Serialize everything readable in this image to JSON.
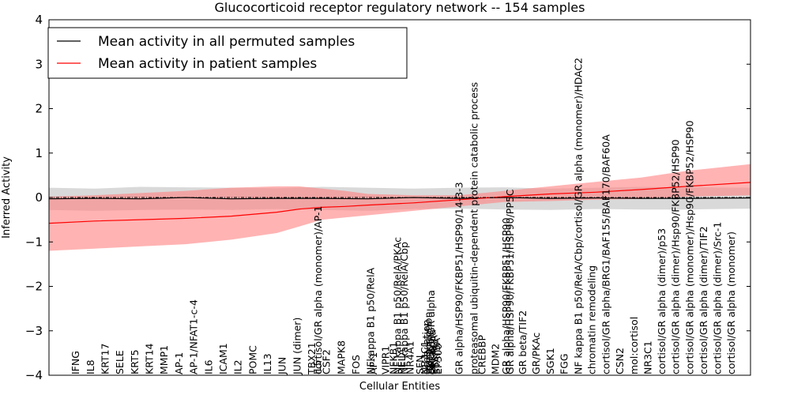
{
  "chart_data": {
    "type": "line",
    "title": "Glucocorticoid receptor regulatory network -- 154 samples",
    "xlabel": "Cellular Entities",
    "ylabel": "Inferred Activity",
    "ylim": [
      -4,
      4
    ],
    "yticks": [
      -4,
      -3,
      -2,
      -1,
      0,
      1,
      2,
      3,
      4
    ],
    "xlim": [
      0,
      154
    ],
    "legend_position": "top-left",
    "colors": {
      "permuted": "#000000",
      "patient": "#ff0000",
      "permuted_band": "#bfbfbf",
      "patient_band": "#ff8080"
    },
    "series": [
      {
        "name": "Mean activity in all permuted samples",
        "x": [
          0,
          10,
          20,
          30,
          40,
          50,
          60,
          70,
          80,
          90,
          100,
          110,
          120,
          130,
          140,
          154
        ],
        "values": [
          -0.03,
          -0.02,
          -0.03,
          0.0,
          -0.03,
          -0.02,
          -0.02,
          -0.03,
          0.0,
          -0.02,
          0.0,
          -0.02,
          -0.01,
          -0.02,
          -0.02,
          -0.01
        ],
        "lower": [
          -0.28,
          -0.3,
          -0.28,
          -0.27,
          -0.28,
          -0.26,
          -0.28,
          -0.3,
          -0.26,
          -0.25,
          -0.27,
          -0.28,
          -0.26,
          -0.27,
          -0.27,
          -0.25
        ],
        "upper": [
          0.22,
          0.2,
          0.24,
          0.23,
          0.22,
          0.21,
          0.24,
          0.22,
          0.2,
          0.22,
          0.23,
          0.2,
          0.22,
          0.24,
          0.23,
          0.22
        ]
      },
      {
        "name": "Mean activity in patient samples",
        "x": [
          0,
          10,
          20,
          30,
          40,
          50,
          55,
          60,
          65,
          70,
          80,
          90,
          100,
          110,
          120,
          130,
          140,
          154
        ],
        "values": [
          -0.58,
          -0.53,
          -0.5,
          -0.47,
          -0.42,
          -0.33,
          -0.26,
          -0.22,
          -0.2,
          -0.17,
          -0.12,
          -0.05,
          0.02,
          0.08,
          0.12,
          0.18,
          0.25,
          0.34
        ],
        "lower": [
          -1.2,
          -1.15,
          -1.1,
          -1.05,
          -0.95,
          -0.8,
          -0.65,
          -0.5,
          -0.45,
          -0.4,
          -0.3,
          -0.2,
          -0.1,
          -0.08,
          -0.05,
          -0.03,
          0.02,
          0.05
        ],
        "upper": [
          0.02,
          0.05,
          0.1,
          0.15,
          0.22,
          0.25,
          0.25,
          0.2,
          0.15,
          0.08,
          0.05,
          0.05,
          0.15,
          0.25,
          0.35,
          0.45,
          0.6,
          0.75
        ]
      }
    ],
    "entity_labels": [
      "IFNG",
      "IL8",
      "KRT17",
      "SELE",
      "KRT5",
      "KRT14",
      "MMP1",
      "AP-1",
      "AP-1/NFAT1-c-4",
      "IL6",
      "ICAM1",
      "IL2",
      "POMC",
      "IL13",
      "JUN",
      "JUN (dimer)",
      "TBX21",
      "IL5",
      "cortisol/GR alpha (monomer)/AP-1",
      "CSF2",
      "MAPK8",
      "FOS",
      "NFkappa B1 p50/RelA",
      "AP-1",
      "VIPR1",
      "NFKB1",
      "NF kappa B1 p50/RelA/PKAc",
      "RELA",
      "NF kappa B1 p50/RelA/Cbp",
      "NR4A1",
      "SFN",
      "NR3C1",
      "acetylation",
      "transcription",
      "AKT1",
      "cortisol/GR alpha",
      "GR alpha",
      "PRKACA",
      "STAT5A",
      "EP300",
      "GR alpha/HSP90/FKBP51/HSP90/14-3-3",
      "proteasomal ubiquitin-dependent protein catabolic process",
      "CREBBP",
      "MDM2",
      "GR alpha/HSP90/FKBP51/HSP90",
      "GR alpha/HSP90/FKBP51/HSP90/PP5C",
      "GR beta/TIF2",
      "GR/PKAc",
      "SGK1",
      "FGG",
      "NF kappa B1 p50/RelA/Cbp/cortisol/GR alpha (monomer)/HDAC2",
      "chromatin remodeling",
      "cortisol/GR alpha/BRG1/BAF155/BAF170/BAF60A",
      "CSN2",
      "mol:cortisol",
      "NR3C1",
      "cortisol/GR alpha (dimer)/p53",
      "cortisol/GR alpha (dimer)/Hsp90/FKBP52/HSP90",
      "cortisol/GR alpha (monomer)/Hsp90/FKBP52/HSP90",
      "cortisol/GR alpha (dimer)/TIF2",
      "cortisol/GR alpha (dimer)/Src-1",
      "cortisol/GR alpha (monomer)"
    ],
    "entity_label_x": [
      8,
      12.5,
      17,
      21.5,
      26,
      30.5,
      35,
      39.5,
      44,
      48.5,
      53,
      57.5,
      62,
      66.5,
      71,
      75.5,
      80,
      81.7,
      81.9,
      84.5,
      89,
      93.5,
      98,
      98.8,
      102.5,
      105,
      106.2,
      107.5,
      108.2,
      110,
      113,
      114.5,
      115,
      115.5,
      116,
      116.4,
      116.8,
      117.2,
      118.1,
      118.6,
      125,
      129.5,
      132,
      136,
      139.3,
      140.5,
      144.3,
      148.5,
      152.8,
      157,
      161.3,
      165.5,
      169.8,
      174,
      178.3,
      182.5,
      186.8,
      191,
      195.3,
      199.5,
      203.8,
      208
    ],
    "entity_label_xlim": [
      0,
      214
    ]
  }
}
